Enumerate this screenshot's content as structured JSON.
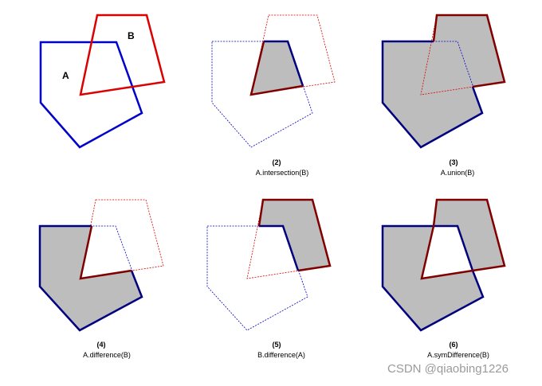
{
  "labels": {
    "A": "A",
    "B": "B"
  },
  "captions": [
    {
      "num": "(2)",
      "op": "A.intersection(B)"
    },
    {
      "num": "(3)",
      "op": "A.union(B)"
    },
    {
      "num": "(4)",
      "op": "A.difference(B)"
    },
    {
      "num": "(5)",
      "op": "B.difference(A)"
    },
    {
      "num": "(6)",
      "op": "A.symDifference(B)"
    }
  ],
  "watermark": "CSDN @qiaobing1226",
  "colors": {
    "polygon_a": "#0000cc",
    "polygon_b": "#dd0000",
    "result_fill": "#bdbdbd",
    "result_edge_a": "#000080",
    "result_edge_b": "#800000"
  }
}
